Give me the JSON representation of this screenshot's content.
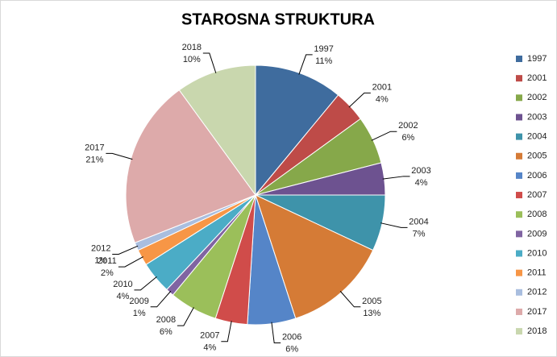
{
  "chart_data": {
    "type": "pie",
    "title": "STAROSNA STRUKTURA",
    "categories": [
      "1997",
      "2001",
      "2002",
      "2003",
      "2004",
      "2005",
      "2006",
      "2007",
      "2008",
      "2009",
      "2010",
      "2011",
      "2012",
      "2017",
      "2018"
    ],
    "values": [
      11,
      4,
      6,
      4,
      7,
      13,
      6,
      4,
      6,
      1,
      4,
      2,
      1,
      21,
      10
    ],
    "value_labels": [
      "11%",
      "4%",
      "6%",
      "4%",
      "7%",
      "13%",
      "6%",
      "4%",
      "6%",
      "1%",
      "4%",
      "2%",
      "1%",
      "21%",
      "10%"
    ],
    "colors": [
      "#3F6C9E",
      "#BE4B48",
      "#86A84A",
      "#6D5290",
      "#3E93AA",
      "#D57B36",
      "#5585C8",
      "#D04C4A",
      "#9BBF5A",
      "#8064A2",
      "#4BACC6",
      "#F79646",
      "#A9BEDF",
      "#DDAAAA",
      "#C9D7AE"
    ],
    "legend": "right"
  }
}
